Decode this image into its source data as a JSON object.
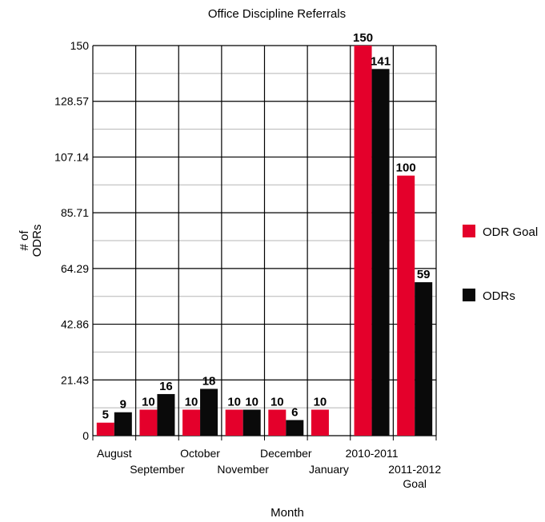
{
  "chart_data": {
    "type": "bar",
    "title": "Office Discipline Referrals",
    "xlabel": "Month",
    "ylabel": [
      "# of",
      "ODRs"
    ],
    "ylim": [
      0,
      150
    ],
    "yticks": [
      "0",
      "21.43",
      "42.86",
      "64.29",
      "85.71",
      "107.14",
      "128.57",
      "150"
    ],
    "ytick_values": [
      0,
      21.43,
      42.86,
      64.29,
      85.71,
      107.14,
      128.57,
      150
    ],
    "categories": [
      [
        "August"
      ],
      [
        "September"
      ],
      [
        "October"
      ],
      [
        "November"
      ],
      [
        "December"
      ],
      [
        "January"
      ],
      [
        "2010-2011"
      ],
      [
        "2011-2012",
        "Goal"
      ]
    ],
    "series": [
      {
        "name": "ODR Goal",
        "color": "#e4002b",
        "values": [
          5,
          10,
          10,
          10,
          10,
          10,
          150,
          100
        ],
        "labels": [
          "5",
          "10",
          "10",
          "10",
          "10",
          "10",
          "150",
          "100"
        ]
      },
      {
        "name": "ODRs",
        "color": "#0a0a0a",
        "values": [
          9,
          16,
          18,
          10,
          6,
          null,
          141,
          59
        ],
        "labels": [
          "9",
          "16",
          "18",
          "10",
          "6",
          "",
          "141",
          "59"
        ]
      }
    ],
    "grid": true,
    "legend_position": "right"
  }
}
